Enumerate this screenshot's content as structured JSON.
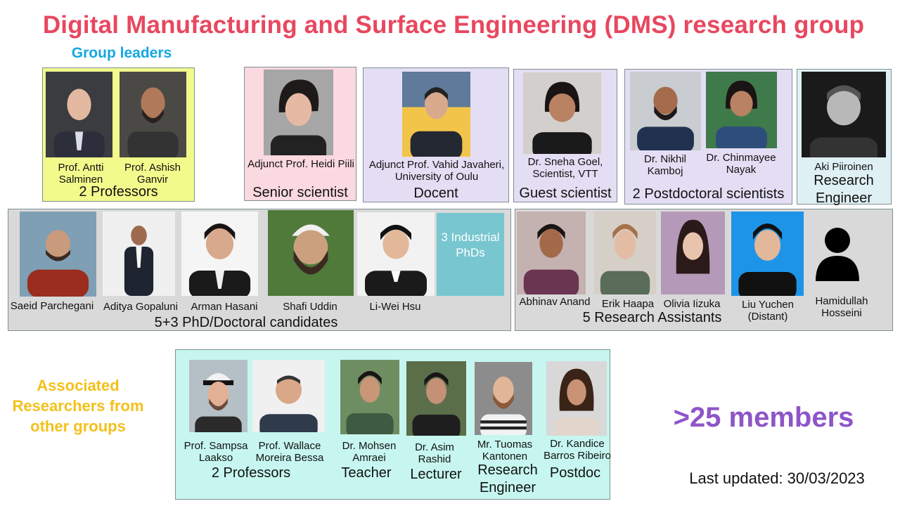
{
  "title": "Digital Manufacturing and Surface Engineering (DMS) research group",
  "group_leaders_heading": "Group leaders",
  "leaders": {
    "members": [
      {
        "name": "Prof. Antti Salminen"
      },
      {
        "name": "Prof. Ashish Ganvir"
      }
    ],
    "role": "2 Professors",
    "bg": "#f2fa8c"
  },
  "senior_scientist": {
    "name": "Adjunct Prof. Heidi Piili",
    "role": "Senior scientist",
    "bg": "#fbd9e0"
  },
  "docent": {
    "name": "Adjunct Prof. Vahid Javaheri, University  of Oulu",
    "role": "Docent",
    "bg": "#e4def4"
  },
  "guest_scientist": {
    "name": "Dr. Sneha Goel, Scientist, VTT",
    "role": "Guest scientist",
    "bg": "#e4def4"
  },
  "postdocs": {
    "members": [
      {
        "name": "Dr. Nikhil Kamboj"
      },
      {
        "name": "Dr. Chinmayee Nayak"
      }
    ],
    "role": "2 Postdoctoral scientists",
    "bg": "#e4def4"
  },
  "research_engineer": {
    "name": "Aki Piiroinen",
    "role": "Research Engineer",
    "bg": "#dff0f4"
  },
  "phd": {
    "members": [
      {
        "name": "Saeid Parchegani"
      },
      {
        "name": "Aditya Gopaluni"
      },
      {
        "name": "Arman Hasani"
      },
      {
        "name": "Shafi Uddin"
      },
      {
        "name": "Li-Wei Hsu"
      }
    ],
    "industrial_label": "3 Industrial PhDs",
    "role": "5+3 PhD/Doctoral candidates",
    "bg": "#d9d9d9"
  },
  "assistants": {
    "members": [
      {
        "name": "Abhinav Anand"
      },
      {
        "name": "Erik Haapa"
      },
      {
        "name": "Olivia Iizuka"
      },
      {
        "name": "Liu Yuchen (Distant)"
      },
      {
        "name": "Hamidullah Hosseini"
      }
    ],
    "role": "5 Research Assistants",
    "bg": "#d9d9d9"
  },
  "associated_label": "Associated Researchers from other groups",
  "associated": {
    "members": [
      {
        "name": "Prof. Sampsa Laakso"
      },
      {
        "name": "Prof. Wallace Moreira Bessa"
      },
      {
        "name": "Dr. Mohsen Amraei"
      },
      {
        "name": "Dr. Asim Rashid"
      },
      {
        "name": "Mr. Tuomas Kantonen"
      },
      {
        "name": "Dr. Kandice Barros Ribeiro"
      }
    ],
    "roles": [
      "2 Professors",
      "Teacher",
      "Lecturer",
      "Research Engineer",
      "Postdoc"
    ],
    "bg": "#c6f6ef"
  },
  "member_count": ">25 members",
  "last_updated": "Last updated: 30/03/2023",
  "colors": {
    "title": "#e8475f",
    "group_leaders": "#14a7e0",
    "associated": "#f4c01b",
    "members": "#8e55c8"
  }
}
